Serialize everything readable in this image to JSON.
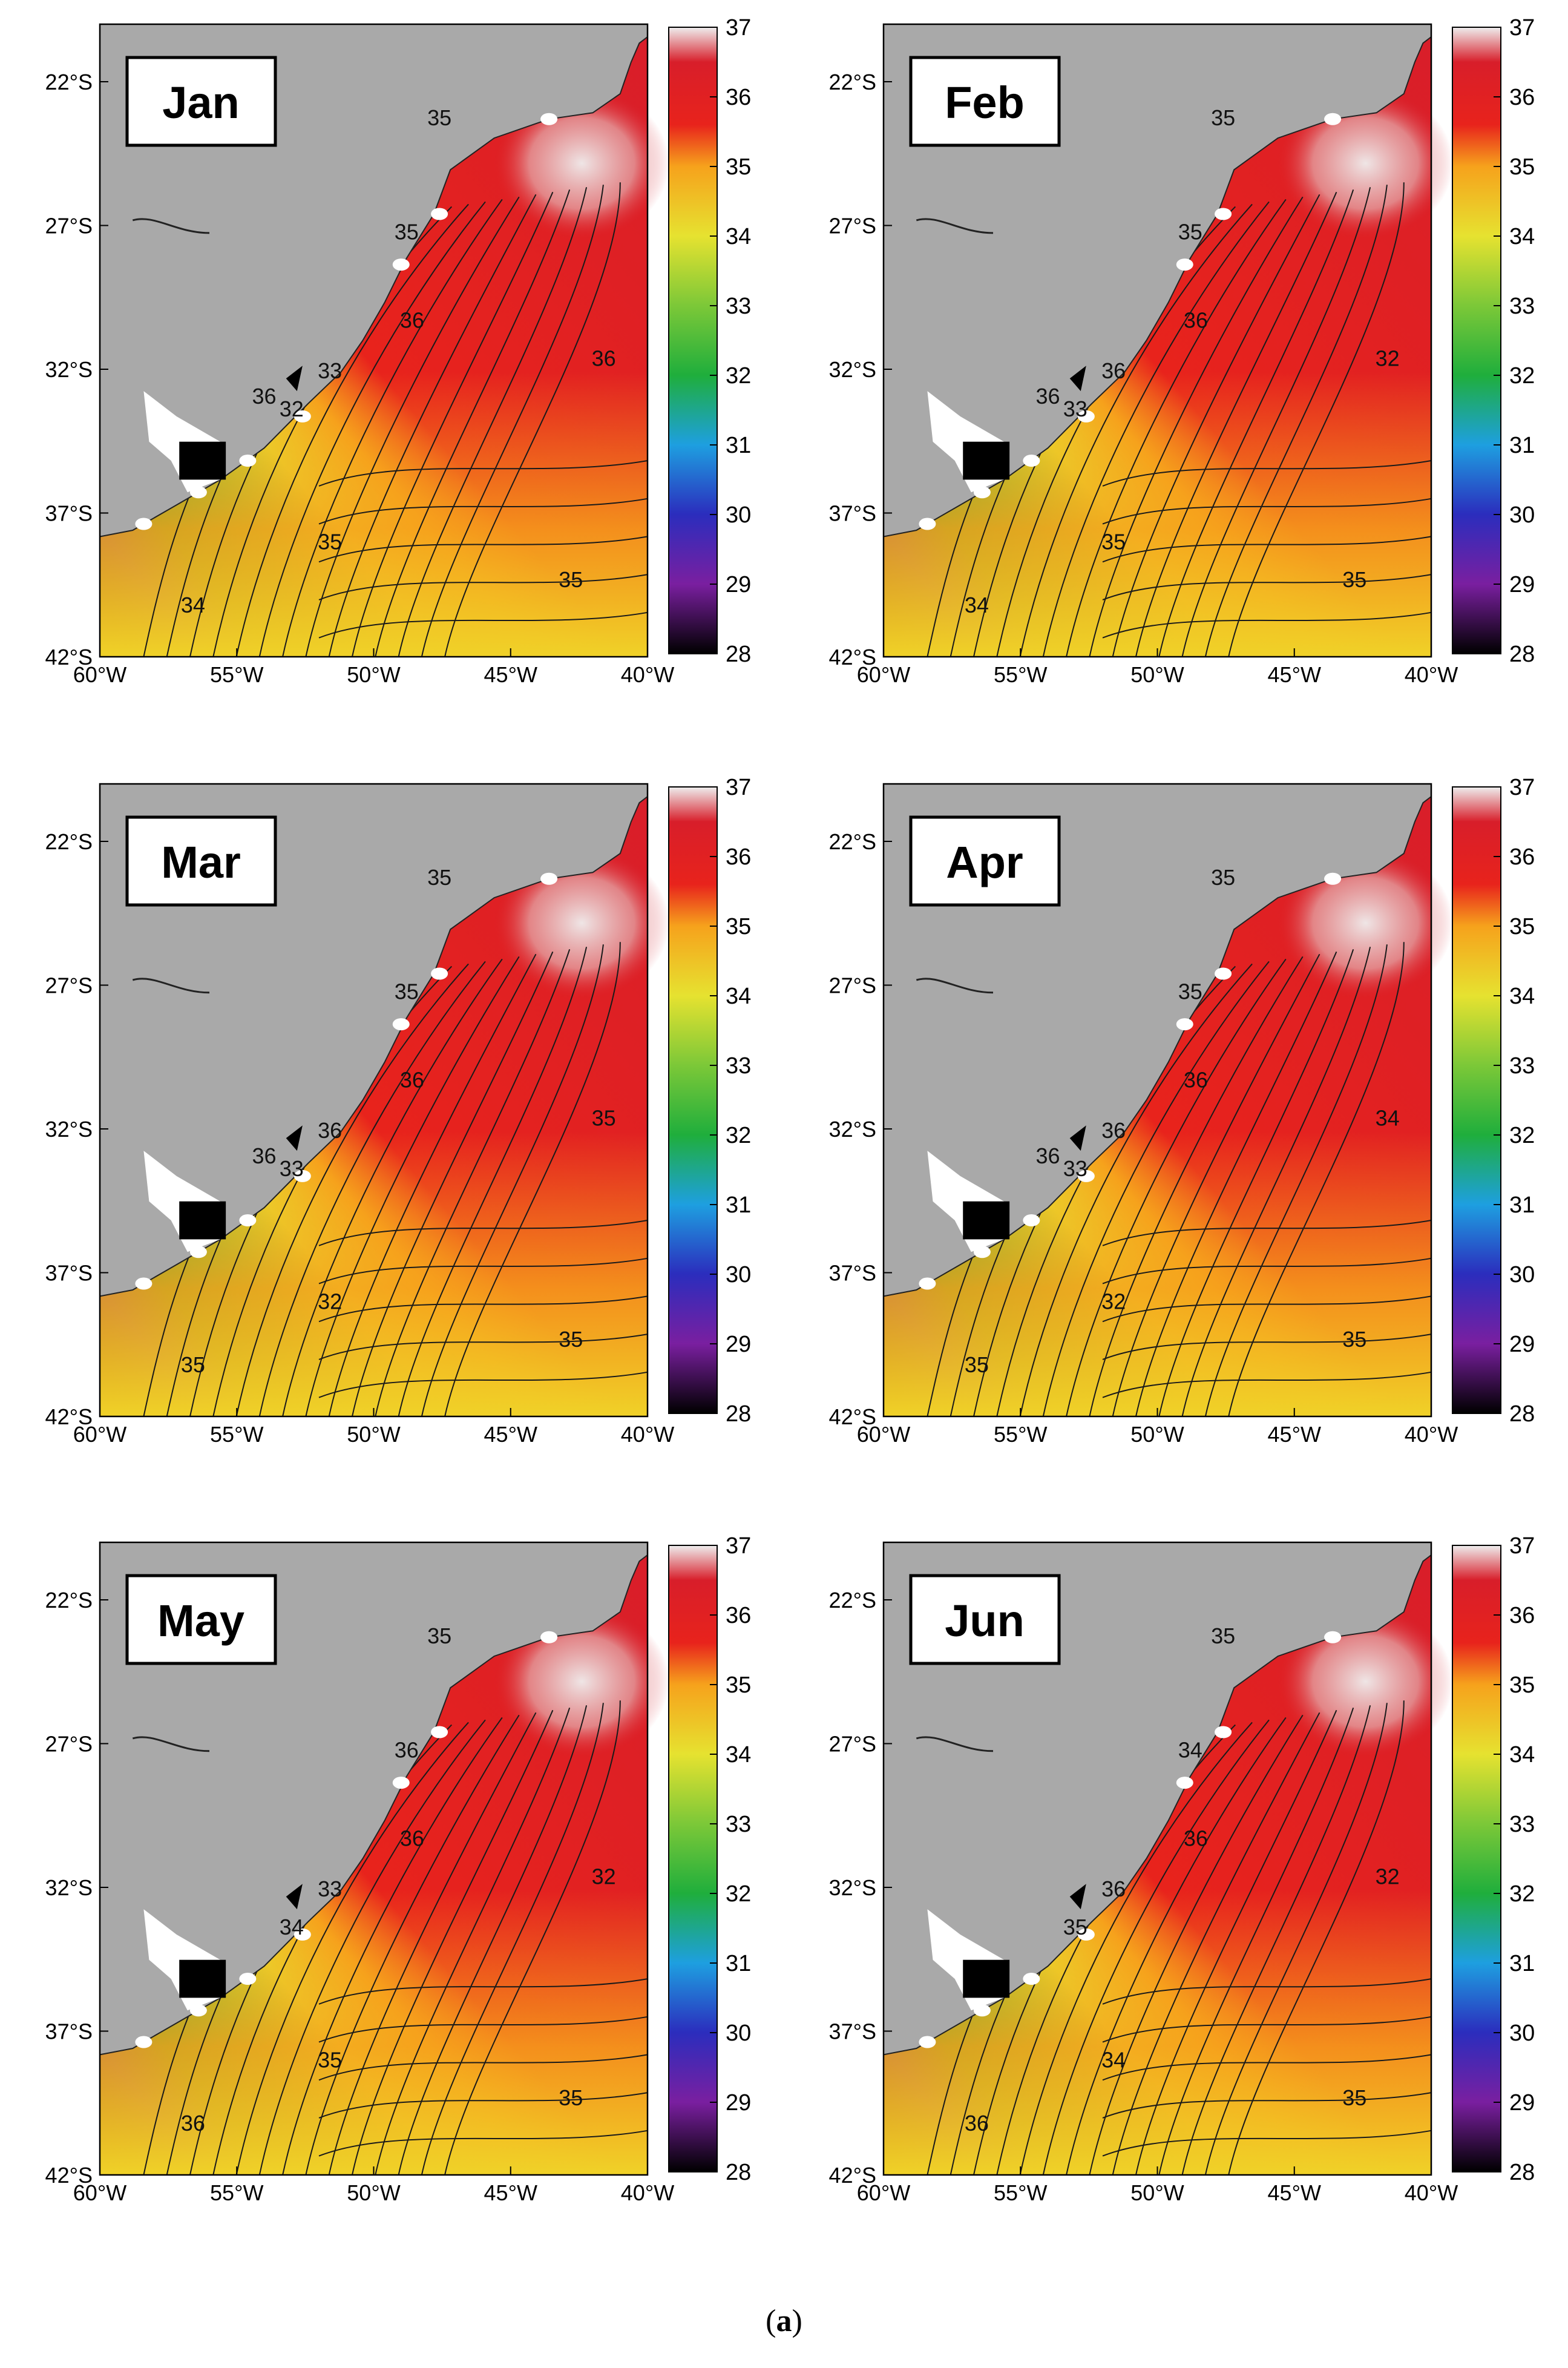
{
  "caption": {
    "open": "(",
    "letter": "a",
    "close": ")"
  },
  "colors": {
    "land": "#a9a9a9",
    "river_plate": "#ffffff",
    "ocean_fallback": "#e8231c",
    "contour": "#1a1a1a",
    "coast": "#222222"
  },
  "axes": {
    "lat_ticks": [
      "22°S",
      "27°S",
      "32°S",
      "37°S",
      "42°S"
    ],
    "lon_ticks": [
      "60°W",
      "55°W",
      "50°W",
      "45°W",
      "40°W"
    ],
    "lat_values": [
      22,
      27,
      32,
      37,
      42
    ],
    "lon_values": [
      60,
      55,
      50,
      45,
      40
    ],
    "lat_range": [
      20,
      42
    ],
    "lon_range": [
      60,
      40
    ]
  },
  "colorbar": {
    "ticks": [
      "37",
      "36",
      "35",
      "34",
      "33",
      "32",
      "31",
      "30",
      "29",
      "28"
    ],
    "range": [
      28,
      37
    ],
    "stops": [
      {
        "v": 28,
        "c": "#000000"
      },
      {
        "v": 29,
        "c": "#7a1fa0"
      },
      {
        "v": 30,
        "c": "#2b2dbd"
      },
      {
        "v": 31,
        "c": "#1e9fe0"
      },
      {
        "v": 32,
        "c": "#1fae3c"
      },
      {
        "v": 33,
        "c": "#7cc838"
      },
      {
        "v": 34,
        "c": "#e6e230"
      },
      {
        "v": 35,
        "c": "#f6a21c"
      },
      {
        "v": 35.6,
        "c": "#e8231c"
      },
      {
        "v": 36.5,
        "c": "#d81e2a"
      },
      {
        "v": 37,
        "c": "#eeeeee"
      }
    ]
  },
  "chart_data": {
    "type": "heatmap",
    "variable_range": [
      28,
      37
    ],
    "panels": [
      {
        "month": "Jan",
        "contour_labels": [
          "35",
          "35",
          "36",
          "33",
          "32",
          "36",
          "35",
          "35",
          "34",
          "36"
        ]
      },
      {
        "month": "Feb",
        "contour_labels": [
          "35",
          "35",
          "36",
          "36",
          "33",
          "32",
          "35",
          "35",
          "34",
          "36"
        ]
      },
      {
        "month": "Mar",
        "contour_labels": [
          "35",
          "35",
          "36",
          "36",
          "33",
          "35",
          "32",
          "35",
          "35",
          "36"
        ]
      },
      {
        "month": "Apr",
        "contour_labels": [
          "35",
          "35",
          "36",
          "36",
          "33",
          "34",
          "32",
          "35",
          "35",
          "36"
        ]
      },
      {
        "month": "May",
        "contour_labels": [
          "35",
          "36",
          "36",
          "33",
          "34",
          "32",
          "35",
          "35",
          "36"
        ]
      },
      {
        "month": "Jun",
        "contour_labels": [
          "35",
          "34",
          "36",
          "36",
          "35",
          "32",
          "34",
          "35",
          "36"
        ]
      }
    ]
  }
}
